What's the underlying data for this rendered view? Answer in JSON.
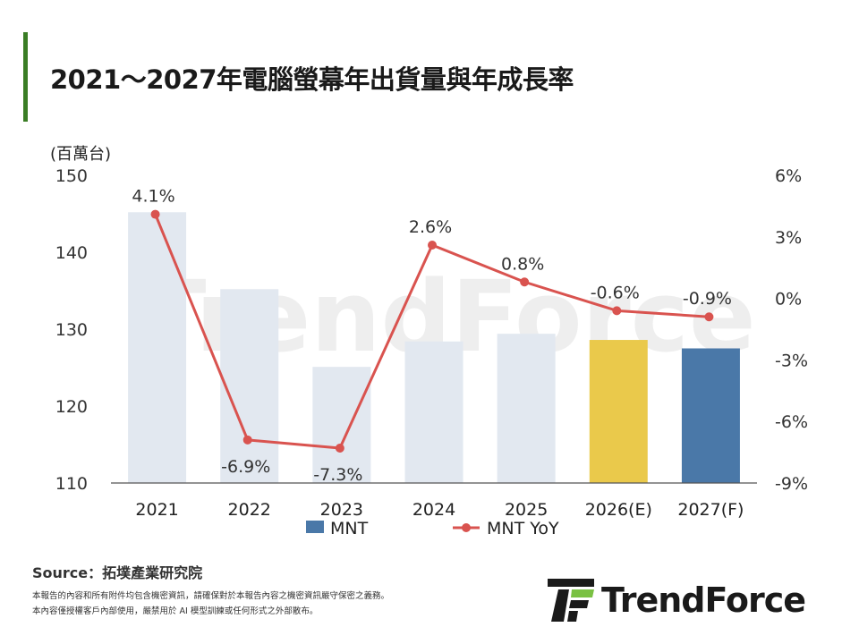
{
  "title": "2021～2027年電腦螢幕年出貨量與年成長率",
  "colors": {
    "accent_bar": "#3a7d24",
    "bar_default": "#e2e8f0",
    "bar_forecast_2026": "#eac94b",
    "bar_forecast_2027": "#4a78a8",
    "line": "#d9534f",
    "axis": "#555555",
    "watermark": "#ececec"
  },
  "chart_data": {
    "type": "bar",
    "categories": [
      "2021",
      "2022",
      "2023",
      "2024",
      "2025",
      "2026(E)",
      "2027(F)"
    ],
    "y_unit_label": "(百萬台)",
    "ylim": [
      110,
      150
    ],
    "y_ticks": [
      "150",
      "140",
      "130",
      "120",
      "110"
    ],
    "y2lim": [
      -9,
      6
    ],
    "y2_ticks": [
      "6%",
      "3%",
      "0%",
      "-3%",
      "-6%",
      "-9%"
    ],
    "grid": false,
    "legend_position": "bottom",
    "series": [
      {
        "name": "MNT",
        "type": "bar",
        "values": [
          145.2,
          135.2,
          125.1,
          128.4,
          129.4,
          128.6,
          127.5
        ]
      },
      {
        "name": "MNT YoY",
        "type": "line",
        "axis": "right",
        "values": [
          4.1,
          -6.9,
          -7.3,
          2.6,
          0.8,
          -0.6,
          -0.9
        ],
        "labels": [
          "4.1%",
          "-6.9%",
          "-7.3%",
          "2.6%",
          "0.8%",
          "-0.6%",
          "-0.9%"
        ]
      }
    ]
  },
  "watermark": "TrendForce",
  "source": "Source：拓墣產業研究院",
  "disclaimer_1": "本報告的內容和所有附件均包含機密資訊，請確保對於本報告內容之機密資訊嚴守保密之義務。",
  "disclaimer_2": "本內容僅授權客戶內部使用，嚴禁用於 AI 模型訓練或任何形式之外部散布。",
  "logo_text": "TrendForce"
}
